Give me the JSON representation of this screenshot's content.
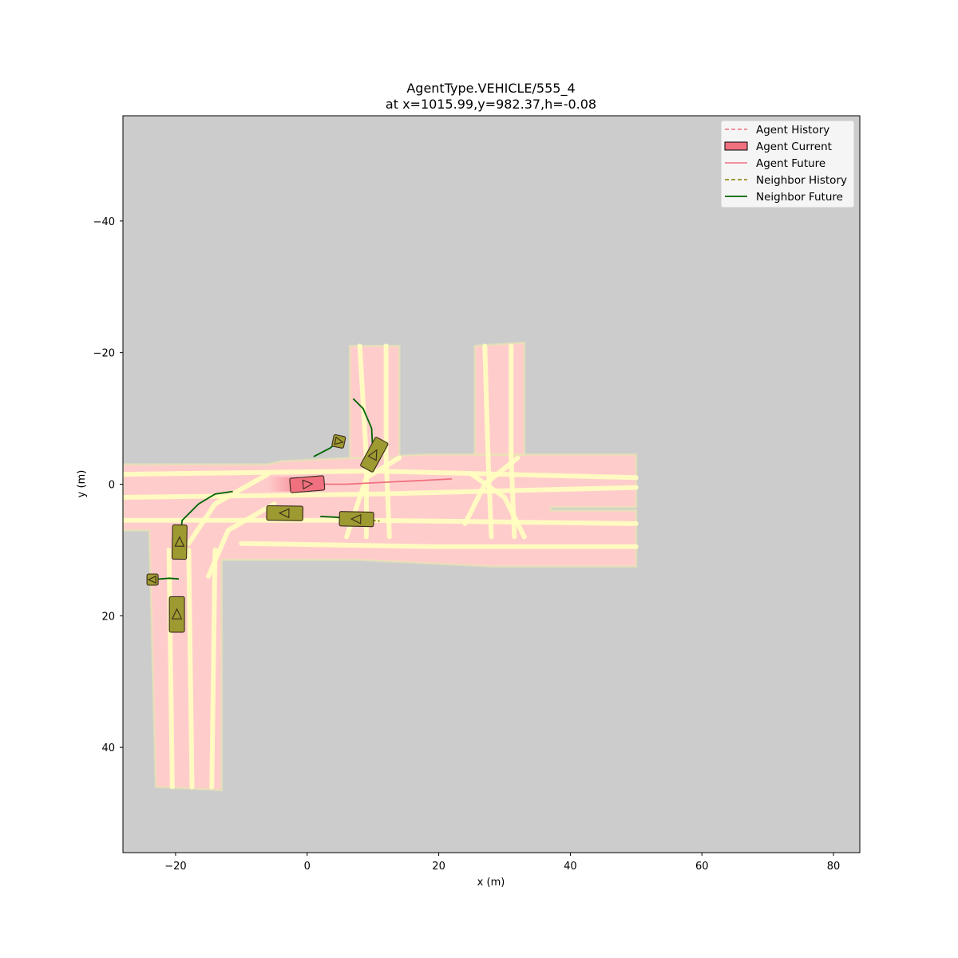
{
  "chart_data": {
    "type": "scatter",
    "title_line1": "AgentType.VEHICLE/555_4",
    "title_line2": "at x=1015.99,y=982.37,h=-0.08",
    "xlabel": "x (m)",
    "ylabel": "y (m)",
    "xlim": [
      -28,
      84
    ],
    "ylim": [
      56,
      -56
    ],
    "y_inverted": true,
    "grid": false,
    "background_color": "#cccccc",
    "xticks": [
      -20,
      0,
      20,
      40,
      60,
      80
    ],
    "xtick_labels": [
      "−20",
      "0",
      "20",
      "40",
      "60",
      "80"
    ],
    "yticks": [
      -40,
      -20,
      0,
      20,
      40
    ],
    "ytick_labels": [
      "−40",
      "−20",
      "0",
      "20",
      "40"
    ],
    "legend_placement": "top-right",
    "legend": [
      {
        "label": "Agent History",
        "style": "dashed",
        "color": "#f07080"
      },
      {
        "label": "Agent Current",
        "style": "patch",
        "color": "#f07080"
      },
      {
        "label": "Agent Future",
        "style": "solid",
        "color": "#f07080"
      },
      {
        "label": "Neighbor History",
        "style": "dashed",
        "color": "#808000"
      },
      {
        "label": "Neighbor Future",
        "style": "solid",
        "color": "#006400"
      }
    ],
    "colors": {
      "agent": "#f07080",
      "neighbor_fill": "#9e9a32",
      "neighbor_future": "#006400",
      "neighbor_history": "#808000",
      "road": "#ffcccc",
      "lane_line": "#ffffc0"
    },
    "road_regions": [
      [
        [
          -28,
          -3
        ],
        [
          -6,
          -3
        ],
        [
          -4,
          -3.5
        ],
        [
          18,
          -4.5
        ],
        [
          50,
          -4.5
        ],
        [
          50,
          3.5
        ],
        [
          37,
          3.5
        ],
        [
          37,
          4
        ],
        [
          50,
          4
        ],
        [
          50,
          12.5
        ],
        [
          28,
          12.5
        ],
        [
          8,
          11.5
        ],
        [
          -13,
          11.5
        ],
        [
          -13,
          46.5
        ],
        [
          -23,
          46
        ],
        [
          -24,
          7
        ],
        [
          -28,
          7
        ]
      ],
      [
        [
          6.5,
          -21
        ],
        [
          14,
          -21
        ],
        [
          14,
          -4
        ],
        [
          6.5,
          -4
        ]
      ],
      [
        [
          25.5,
          -21
        ],
        [
          33,
          -21.5
        ],
        [
          33,
          -4.5
        ],
        [
          25.5,
          -4.5
        ]
      ]
    ],
    "lane_lines": [
      [
        [
          -28,
          -1.5
        ],
        [
          10,
          -2
        ],
        [
          50,
          -1
        ]
      ],
      [
        [
          -28,
          2
        ],
        [
          10,
          1.5
        ],
        [
          50,
          0.5
        ]
      ],
      [
        [
          -28,
          5.5
        ],
        [
          10,
          5.5
        ],
        [
          50,
          6
        ]
      ],
      [
        [
          -10,
          9
        ],
        [
          20,
          9.5
        ],
        [
          50,
          9.5
        ]
      ],
      [
        [
          -21,
          10
        ],
        [
          -20.5,
          46
        ]
      ],
      [
        [
          -18,
          10
        ],
        [
          -17.5,
          46
        ]
      ],
      [
        [
          -14,
          10
        ],
        [
          -14.5,
          46
        ]
      ],
      [
        [
          8,
          -21
        ],
        [
          9,
          -4
        ],
        [
          9,
          8
        ]
      ],
      [
        [
          12,
          -21
        ],
        [
          12,
          -4
        ],
        [
          12.5,
          8
        ]
      ],
      [
        [
          27,
          -21
        ],
        [
          27.5,
          -4
        ],
        [
          28,
          8
        ]
      ],
      [
        [
          31,
          -21
        ],
        [
          31,
          -4
        ],
        [
          31.5,
          8
        ]
      ],
      [
        [
          -18,
          9
        ],
        [
          -14,
          3
        ],
        [
          -6,
          -1.5
        ]
      ],
      [
        [
          -15,
          14
        ],
        [
          -12,
          7
        ],
        [
          -5,
          3
        ]
      ],
      [
        [
          6,
          8
        ],
        [
          9,
          -1
        ],
        [
          14,
          -4
        ]
      ],
      [
        [
          24,
          6
        ],
        [
          27,
          0
        ],
        [
          32,
          -4
        ]
      ],
      [
        [
          33,
          8
        ],
        [
          30,
          2
        ],
        [
          25,
          -1.5
        ]
      ]
    ],
    "ego": {
      "x": 0,
      "y": 0,
      "heading": -0.08,
      "length": 5.2,
      "width": 2.2
    },
    "ego_future": [
      [
        0,
        0
      ],
      [
        6,
        0
      ],
      [
        12,
        -0.3
      ],
      [
        18,
        -0.6
      ],
      [
        22,
        -0.8
      ]
    ],
    "ego_history_fade": [
      -6,
      0
    ],
    "neighbors": [
      {
        "x": 10.2,
        "y": -4.5,
        "heading": 1.75,
        "length": 5.0,
        "width": 2.2,
        "dir": "up",
        "future": [
          [
            10,
            -4.5
          ],
          [
            9.8,
            -8.5
          ],
          [
            8.5,
            -11.5
          ],
          [
            7,
            -13
          ]
        ],
        "history": []
      },
      {
        "x": 4.8,
        "y": -6.5,
        "heading": 0.7,
        "length": 1.8,
        "width": 1.8,
        "dir": "right",
        "future": [
          [
            5.5,
            -7.2
          ],
          [
            3.5,
            -5.5
          ],
          [
            1,
            -4.2
          ]
        ],
        "history": []
      },
      {
        "x": -3.4,
        "y": 4.4,
        "heading": 0.05,
        "length": 5.5,
        "width": 2.2,
        "dir": "left",
        "future": [
          [
            -3.4,
            4.4
          ],
          [
            -5,
            4.2
          ]
        ],
        "history": [
          [
            -3.4,
            4.4
          ],
          [
            -2,
            4.6
          ]
        ]
      },
      {
        "x": 7.5,
        "y": 5.3,
        "heading": 0.08,
        "length": 5.2,
        "width": 2.2,
        "dir": "left",
        "future": [
          [
            7.5,
            5.3
          ],
          [
            4,
            5.0
          ],
          [
            2,
            4.9
          ]
        ],
        "history": [
          [
            7.5,
            5.3
          ],
          [
            11,
            5.6
          ]
        ]
      },
      {
        "x": -19.4,
        "y": 8.8,
        "heading": -1.45,
        "length": 5.2,
        "width": 2.2,
        "dir": "up",
        "future": [
          [
            -19.4,
            8.8
          ],
          [
            -19,
            5.5
          ],
          [
            -16.5,
            3
          ],
          [
            -14,
            1.5
          ],
          [
            -11.3,
            1.1
          ]
        ],
        "history": []
      },
      {
        "x": -23.5,
        "y": 14.5,
        "heading": 0.0,
        "length": 1.7,
        "width": 1.7,
        "dir": "left",
        "future": [
          [
            -23.5,
            14.5
          ],
          [
            -21,
            14.3
          ],
          [
            -19.5,
            14.4
          ]
        ],
        "history": []
      },
      {
        "x": -19.8,
        "y": 19.8,
        "heading": -1.57,
        "length": 5.4,
        "width": 2.3,
        "dir": "up",
        "future": [],
        "history": []
      }
    ]
  }
}
